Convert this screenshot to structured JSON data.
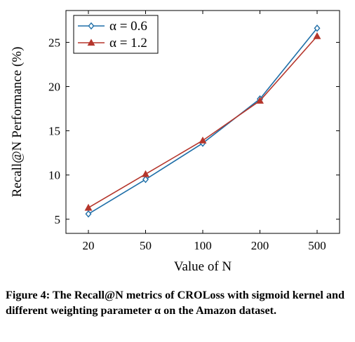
{
  "chart_data": {
    "type": "line",
    "categories": [
      "20",
      "50",
      "100",
      "200",
      "500"
    ],
    "series": [
      {
        "name": "α = 0.6",
        "values": [
          5.6,
          9.5,
          13.6,
          18.6,
          26.6
        ],
        "color": "#1f6fa8",
        "marker": "diamond"
      },
      {
        "name": "α = 1.2",
        "values": [
          6.3,
          10.1,
          13.9,
          18.4,
          25.7
        ],
        "color": "#b5362c",
        "marker": "triangle"
      }
    ],
    "xlabel": "Value of N",
    "ylabel": "Recall@N Performance (%)",
    "ylim": [
      3.4,
      28.6
    ],
    "yticks": [
      5,
      10,
      15,
      20,
      25
    ],
    "grid": false,
    "legend_position": "top-left"
  },
  "caption": "Figure 4: The Recall@N metrics of CROLoss with sigmoid kernel and different weighting parameter α on the Amazon dataset."
}
